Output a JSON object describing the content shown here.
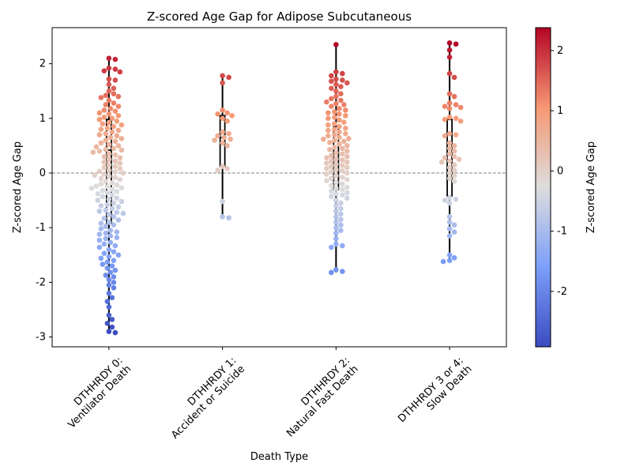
{
  "chart_data": {
    "type": "swarm",
    "title": "Z-scored Age Gap for Adipose Subcutaneous",
    "xlabel": "Death Type",
    "ylabel": "Z-scored Age Gap",
    "ylim": [
      -3.18,
      2.66
    ],
    "yticks": [
      -3,
      -2,
      -1,
      0,
      1,
      2
    ],
    "categories": [
      [
        "DTHHRDY 0:",
        "Ventilator Death"
      ],
      [
        "DTHHRDY 1:",
        "Accident or Suicide"
      ],
      [
        "DTHHRDY 2:",
        "Natural Fast Death"
      ],
      [
        "DTHHRDY 3 or 4:",
        "Slow Death"
      ]
    ],
    "reference_line": {
      "y": 0,
      "style": "dashed",
      "color": "#808080"
    },
    "boxes": [
      {
        "whisker_low": -2.92,
        "q1": -0.92,
        "median": 0.42,
        "q3": 0.98,
        "whisker_high": 2.1
      },
      {
        "whisker_low": -0.82,
        "q1": 0.12,
        "median": 0.65,
        "q3": 1.05,
        "whisker_high": 1.78
      },
      {
        "whisker_low": -1.82,
        "q1": -0.3,
        "median": 0.27,
        "q3": 0.85,
        "whisker_high": 2.35
      },
      {
        "whisker_low": -1.62,
        "q1": -0.42,
        "median": 0.22,
        "q3": 0.98,
        "whisker_high": 2.38
      }
    ],
    "points": [
      [
        2.1,
        2.08,
        1.92,
        1.9,
        1.87,
        1.85,
        1.72,
        1.7,
        1.62,
        1.55,
        1.5,
        1.45,
        1.42,
        1.4,
        1.38,
        1.33,
        1.28,
        1.25,
        1.22,
        1.18,
        1.15,
        1.13,
        1.1,
        1.08,
        1.05,
        1.02,
        1.0,
        0.98,
        0.95,
        0.92,
        0.9,
        0.88,
        0.85,
        0.82,
        0.8,
        0.78,
        0.75,
        0.72,
        0.7,
        0.68,
        0.65,
        0.63,
        0.6,
        0.58,
        0.55,
        0.52,
        0.5,
        0.48,
        0.45,
        0.43,
        0.42,
        0.4,
        0.38,
        0.35,
        0.33,
        0.3,
        0.28,
        0.25,
        0.22,
        0.2,
        0.18,
        0.15,
        0.12,
        0.1,
        0.08,
        0.05,
        0.03,
        0.02,
        0.0,
        -0.02,
        -0.04,
        -0.06,
        -0.08,
        -0.1,
        -0.12,
        -0.15,
        -0.18,
        -0.2,
        -0.22,
        -0.24,
        -0.25,
        -0.27,
        -0.28,
        -0.3,
        -0.32,
        -0.34,
        -0.36,
        -0.38,
        -0.4,
        -0.43,
        -0.46,
        -0.48,
        -0.5,
        -0.52,
        -0.55,
        -0.58,
        -0.6,
        -0.62,
        -0.65,
        -0.68,
        -0.7,
        -0.72,
        -0.74,
        -0.76,
        -0.8,
        -0.83,
        -0.86,
        -0.9,
        -0.92,
        -0.95,
        -0.98,
        -1.02,
        -1.05,
        -1.08,
        -1.1,
        -1.12,
        -1.15,
        -1.18,
        -1.2,
        -1.23,
        -1.27,
        -1.3,
        -1.33,
        -1.36,
        -1.4,
        -1.44,
        -1.47,
        -1.5,
        -1.53,
        -1.56,
        -1.6,
        -1.63,
        -1.67,
        -1.7,
        -1.74,
        -1.78,
        -1.82,
        -1.87,
        -1.9,
        -1.95,
        -2.0,
        -2.05,
        -2.1,
        -2.2,
        -2.28,
        -2.35,
        -2.45,
        -2.6,
        -2.68,
        -2.75,
        -2.82,
        -2.9,
        -2.92
      ],
      [
        1.78,
        1.75,
        1.65,
        1.15,
        1.1,
        1.08,
        1.05,
        1.0,
        0.95,
        0.75,
        0.72,
        0.68,
        0.65,
        0.62,
        0.6,
        0.55,
        0.5,
        0.12,
        0.08,
        0.05,
        -0.52,
        -0.8,
        -0.82
      ],
      [
        2.35,
        1.85,
        1.82,
        1.78,
        1.72,
        1.7,
        1.68,
        1.65,
        1.62,
        1.58,
        1.55,
        1.5,
        1.45,
        1.4,
        1.36,
        1.33,
        1.3,
        1.27,
        1.25,
        1.22,
        1.18,
        1.15,
        1.12,
        1.1,
        1.08,
        1.05,
        1.02,
        1.0,
        0.97,
        0.93,
        0.9,
        0.88,
        0.85,
        0.82,
        0.8,
        0.78,
        0.75,
        0.72,
        0.7,
        0.68,
        0.65,
        0.63,
        0.62,
        0.6,
        0.58,
        0.56,
        0.53,
        0.5,
        0.47,
        0.45,
        0.43,
        0.4,
        0.37,
        0.35,
        0.32,
        0.3,
        0.28,
        0.26,
        0.24,
        0.22,
        0.2,
        0.18,
        0.16,
        0.14,
        0.12,
        0.1,
        0.08,
        0.06,
        0.04,
        0.02,
        0.0,
        -0.02,
        -0.05,
        -0.08,
        -0.1,
        -0.12,
        -0.14,
        -0.17,
        -0.2,
        -0.23,
        -0.26,
        -0.28,
        -0.3,
        -0.33,
        -0.36,
        -0.38,
        -0.4,
        -0.43,
        -0.46,
        -0.5,
        -0.55,
        -0.6,
        -0.65,
        -0.7,
        -0.75,
        -0.8,
        -0.85,
        -0.9,
        -0.95,
        -1.0,
        -1.05,
        -1.1,
        -1.2,
        -1.3,
        -1.33,
        -1.36,
        -1.77,
        -1.8,
        -1.82
      ],
      [
        2.38,
        2.36,
        2.25,
        2.12,
        1.82,
        1.75,
        1.45,
        1.4,
        1.28,
        1.25,
        1.22,
        1.2,
        1.18,
        1.02,
        1.0,
        0.98,
        0.95,
        0.72,
        0.7,
        0.68,
        0.55,
        0.5,
        0.45,
        0.4,
        0.35,
        0.3,
        0.28,
        0.25,
        0.22,
        0.2,
        0.15,
        0.1,
        0.05,
        0.0,
        -0.05,
        -0.1,
        -0.15,
        -0.45,
        -0.48,
        -0.5,
        -0.55,
        -0.8,
        -0.9,
        -0.95,
        -1.02,
        -1.08,
        -1.15,
        -1.5,
        -1.55,
        -1.6,
        -1.62
      ]
    ],
    "colorbar": {
      "label": "Z-scored Age Gap",
      "colormap": "coolwarm",
      "range": [
        -2.92,
        2.38
      ],
      "ticks": [
        -2,
        -1,
        0,
        1,
        2
      ]
    },
    "colors": {
      "cold": "#3b4cc0",
      "neutral": "#dddddd",
      "warm": "#b40426",
      "refline": "#808080"
    }
  }
}
